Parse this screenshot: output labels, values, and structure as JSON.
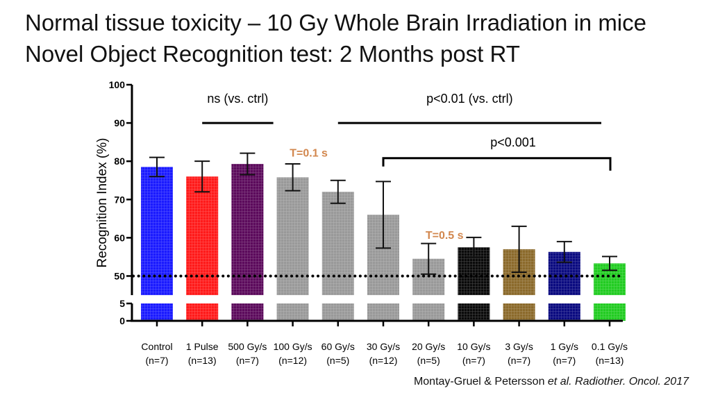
{
  "title_line1": "Normal tissue toxicity – 10 Gy Whole Brain Irradiation in mice",
  "title_line2": "Novel Object Recognition test: 2 Months post RT",
  "citation": {
    "authors": "Montay-Gruel & Petersson ",
    "etal": "et al. Radiother. Oncol. 2017"
  },
  "chart_data": {
    "type": "bar",
    "ylabel": "Recognition Index (%)",
    "ylim": [
      0,
      100
    ],
    "y_axis_break": [
      5,
      45
    ],
    "y_ticks": [
      0,
      5,
      50,
      60,
      70,
      80,
      90,
      100
    ],
    "reference_line": 50,
    "categories": [
      {
        "label": "Control",
        "n": "(n=7)"
      },
      {
        "label": "1 Pulse",
        "n": "(n=13)"
      },
      {
        "label": "500 Gy/s",
        "n": "(n=7)"
      },
      {
        "label": "100 Gy/s",
        "n": "(n=12)"
      },
      {
        "label": "60 Gy/s",
        "n": "(n=5)"
      },
      {
        "label": "30 Gy/s",
        "n": "(n=12)"
      },
      {
        "label": "20 Gy/s",
        "n": "(n=5)"
      },
      {
        "label": "10 Gy/s",
        "n": "(n=7)"
      },
      {
        "label": "3 Gy/s",
        "n": "(n=7)"
      },
      {
        "label": "1 Gy/s",
        "n": "(n=7)"
      },
      {
        "label": "0.1 Gy/s",
        "n": "(n=13)"
      }
    ],
    "values": [
      78.5,
      76,
      79.3,
      75.8,
      72,
      66,
      54.5,
      57.5,
      57,
      56.3,
      53.3
    ],
    "error": [
      2.5,
      4,
      2.8,
      3.5,
      3,
      8.7,
      4,
      2.6,
      6,
      2.7,
      1.8
    ],
    "colors": [
      "#1a1aff",
      "#ff1a1a",
      "#5c0a5c",
      "#999999",
      "#999999",
      "#999999",
      "#999999",
      "#0a0a0a",
      "#8b6a2b",
      "#0a0a80",
      "#22cc22"
    ],
    "annotations": [
      {
        "text": "ns (vs. ctrl)",
        "from": 1,
        "to": 3,
        "y": 90
      },
      {
        "text": "p<0.01 (vs. ctrl)",
        "from": 4,
        "to": 10,
        "y": 90
      },
      {
        "text": "p<0.001",
        "from": 5,
        "to": 10,
        "y": 80.8
      }
    ],
    "time_labels": [
      {
        "text": "T=0.1 s",
        "color": "#d2874e",
        "at": 3.0,
        "y": 82.5
      },
      {
        "text": "T=0.5 s",
        "color": "#d2874e",
        "at": 6.0,
        "y": 61
      }
    ]
  }
}
